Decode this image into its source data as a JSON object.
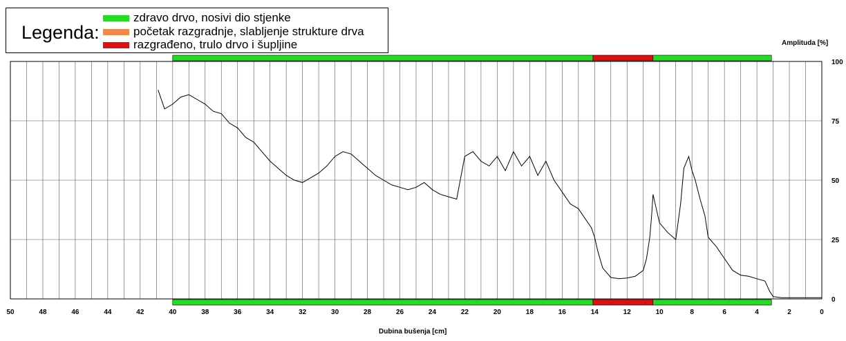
{
  "legend": {
    "title": "Legenda:",
    "items": [
      {
        "label": "zdravo drvo, nosivi dio stjenke",
        "color": "#22dd22"
      },
      {
        "label": "početak razgradnje, slabljenje strukture drva",
        "color": "#f08a4b"
      },
      {
        "label": "razgrađeno, trulo drvo i šupljine",
        "color": "#dd1111"
      }
    ]
  },
  "chart_data": {
    "type": "line",
    "xlabel": "Dubina bušenja [cm]",
    "ylabel": "Amplituda [%]",
    "xlim": [
      50,
      0
    ],
    "ylim": [
      0,
      100
    ],
    "x_ticks": [
      50,
      48,
      46,
      44,
      42,
      40,
      38,
      36,
      34,
      32,
      30,
      28,
      26,
      24,
      22,
      20,
      18,
      16,
      14,
      12,
      10,
      8,
      6,
      4,
      2,
      0
    ],
    "y_ticks": [
      0,
      25,
      50,
      75,
      100
    ],
    "grid": true,
    "vertical_grid_step": 1,
    "status_bands": [
      {
        "from": 40,
        "to": 14.1,
        "status": "zdravo drvo, nosivi dio stjenke",
        "color": "#22dd22"
      },
      {
        "from": 14.1,
        "to": 10.4,
        "status": "razgrađeno, trulo drvo i šupljine",
        "color": "#dd1111"
      },
      {
        "from": 10.4,
        "to": 3.1,
        "status": "zdravo drvo, nosivi dio stjenke",
        "color": "#22dd22"
      }
    ],
    "series": [
      {
        "color": "#000000",
        "x": [
          40.9,
          40.5,
          40,
          39.5,
          39,
          38.5,
          38,
          37.5,
          37,
          36.5,
          36,
          35.5,
          35,
          34.5,
          34,
          33.5,
          33,
          32.5,
          32,
          31.5,
          31,
          30.5,
          30,
          29.5,
          29,
          28.5,
          28,
          27.5,
          27,
          26.5,
          26,
          25.5,
          25,
          24.5,
          24,
          23.5,
          23,
          22.5,
          22,
          21.5,
          21,
          20.5,
          20,
          19.5,
          19,
          18.5,
          18,
          17.5,
          17,
          16.5,
          16,
          15.5,
          15,
          14.5,
          14.2,
          14,
          13.8,
          13.5,
          13,
          12.5,
          12,
          11.5,
          11,
          10.8,
          10.6,
          10.5,
          10.4,
          10.2,
          10,
          9.5,
          9,
          8.7,
          8.5,
          8.2,
          8,
          7.8,
          7.5,
          7.2,
          7,
          6.5,
          6,
          5.5,
          5,
          4.5,
          4,
          3.5,
          3.2,
          3,
          2.5,
          2,
          1.5,
          1,
          0.5,
          0
        ],
        "y": [
          88,
          80,
          82,
          85,
          86,
          84,
          82,
          79,
          78,
          74,
          72,
          68,
          66,
          62,
          58,
          55,
          52,
          50,
          49,
          51,
          53,
          56,
          60,
          62,
          61,
          58,
          55,
          52,
          50,
          48,
          47,
          46,
          47,
          49,
          46,
          44,
          43,
          42,
          60,
          62,
          58,
          56,
          60,
          54,
          62,
          56,
          60,
          52,
          58,
          50,
          45,
          40,
          38,
          33,
          30,
          26,
          20,
          13,
          9,
          8.5,
          8.8,
          9.5,
          12,
          17,
          26,
          34,
          44,
          38,
          32,
          28,
          25,
          40,
          55,
          60,
          54,
          50,
          42,
          35,
          26,
          22,
          17,
          12,
          10,
          9.5,
          8.5,
          7.5,
          3,
          1,
          0.5,
          0.5,
          0.5,
          0.5,
          0.5,
          0.5
        ]
      }
    ]
  }
}
